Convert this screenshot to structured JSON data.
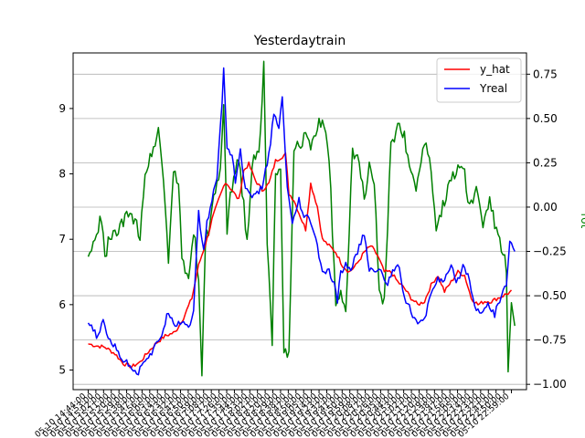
{
  "chart_data": {
    "type": "line",
    "title": "Yesterdaytrain",
    "legend_position": "top-right",
    "grid": "horizontal (right axis)",
    "left_axis": {
      "ylim": [
        4.7,
        9.85
      ],
      "ticks": [
        5,
        6,
        7,
        8,
        9
      ],
      "tick_labels": [
        "5",
        "6",
        "7",
        "8",
        "9"
      ]
    },
    "right_axis": {
      "label": "rot",
      "color": "#008000",
      "ylim": [
        -1.03,
        0.87
      ],
      "ticks": [
        -1.0,
        -0.75,
        -0.5,
        -0.25,
        0.0,
        0.25,
        0.5,
        0.75
      ],
      "tick_labels": [
        "−1.00",
        "−0.75",
        "−0.50",
        "−0.25",
        "0.00",
        "0.25",
        "0.50",
        "0.75"
      ]
    },
    "xlim": [
      -9,
      262
    ],
    "x_tick_labels": [
      "05-10 14:44:00",
      "05-10 14:53:00",
      "05-10 15:02:00",
      "05-10 15:11:00",
      "05-10 15:20:00",
      "05-10 15:29:00",
      "05-10 15:38:00",
      "05-10 15:47:00",
      "05-10 15:56:00",
      "05-10 16:05:00",
      "05-10 16:14:00",
      "05-10 16:23:00",
      "05-10 16:32:00",
      "05-10 16:41:00",
      "05-10 16:50:00",
      "05-10 16:59:00",
      "05-10 17:08:00",
      "05-10 17:17:00",
      "05-10 17:26:00",
      "05-10 17:35:00",
      "05-10 17:44:00",
      "05-10 17:53:00",
      "05-10 18:02:00",
      "05-10 18:11:00",
      "05-10 18:20:00",
      "05-10 18:29:00",
      "05-10 18:38:00",
      "05-10 18:47:00",
      "05-10 18:56:00",
      "05-10 19:05:00",
      "05-10 19:14:00",
      "05-10 19:23:00",
      "05-10 19:32:00",
      "05-10 19:41:00",
      "05-10 19:50:00",
      "05-10 19:59:00",
      "05-10 20:08:00",
      "05-10 20:17:00",
      "05-10 20:26:00",
      "05-10 20:35:00",
      "05-10 20:44:00",
      "05-10 20:53:00",
      "05-10 21:02:00",
      "05-10 21:11:00",
      "05-10 21:20:00",
      "05-10 21:29:00",
      "05-10 21:38:00",
      "05-10 21:47:00",
      "05-10 21:56:00",
      "05-10 22:05:00",
      "05-10 22:14:00",
      "05-10 22:23:00",
      "05-10 22:32:00",
      "05-10 22:41:00",
      "05-10 22:50:00",
      "05-10 22:59:00"
    ],
    "series": [
      {
        "name": "y_hat",
        "axis": "left",
        "color": "#ff0000",
        "anchors": [
          [
            0,
            5.4
          ],
          [
            5,
            5.37
          ],
          [
            10,
            5.35
          ],
          [
            16,
            5.25
          ],
          [
            21,
            5.1
          ],
          [
            26,
            5.05
          ],
          [
            31,
            5.12
          ],
          [
            36,
            5.28
          ],
          [
            41,
            5.42
          ],
          [
            46,
            5.52
          ],
          [
            52,
            5.58
          ],
          [
            57,
            5.8
          ],
          [
            62,
            6.1
          ],
          [
            66,
            6.6
          ],
          [
            71,
            7.0
          ],
          [
            74,
            7.3
          ],
          [
            78,
            7.6
          ],
          [
            82,
            7.88
          ],
          [
            86,
            7.75
          ],
          [
            90,
            7.6
          ],
          [
            93,
            8.05
          ],
          [
            96,
            8.15
          ],
          [
            100,
            7.9
          ],
          [
            104,
            7.75
          ],
          [
            108,
            7.85
          ],
          [
            112,
            8.2
          ],
          [
            118,
            8.3
          ],
          [
            120,
            7.7
          ],
          [
            123,
            7.6
          ],
          [
            126,
            7.4
          ],
          [
            130,
            7.15
          ],
          [
            133,
            7.85
          ],
          [
            137,
            7.5
          ],
          [
            140,
            7.0
          ],
          [
            144,
            6.9
          ],
          [
            148,
            6.8
          ],
          [
            152,
            6.6
          ],
          [
            156,
            6.5
          ],
          [
            160,
            6.6
          ],
          [
            165,
            6.8
          ],
          [
            169,
            6.9
          ],
          [
            173,
            6.75
          ],
          [
            177,
            6.5
          ],
          [
            181,
            6.5
          ],
          [
            185,
            6.35
          ],
          [
            189,
            6.25
          ],
          [
            193,
            6.1
          ],
          [
            197,
            6.0
          ],
          [
            201,
            6.05
          ],
          [
            205,
            6.3
          ],
          [
            209,
            6.45
          ],
          [
            213,
            6.2
          ],
          [
            217,
            6.35
          ],
          [
            221,
            6.5
          ],
          [
            225,
            6.45
          ],
          [
            229,
            6.1
          ],
          [
            233,
            6.0
          ],
          [
            237,
            6.05
          ],
          [
            241,
            6.05
          ],
          [
            245,
            6.1
          ],
          [
            249,
            6.15
          ],
          [
            253,
            6.2
          ]
        ],
        "noise": 0.03
      },
      {
        "name": "Yreal",
        "axis": "left",
        "color": "#0000ff",
        "anchors": [
          [
            0,
            5.72
          ],
          [
            3,
            5.6
          ],
          [
            6,
            5.5
          ],
          [
            9,
            5.75
          ],
          [
            12,
            5.5
          ],
          [
            16,
            5.35
          ],
          [
            21,
            5.15
          ],
          [
            26,
            5.05
          ],
          [
            30,
            4.95
          ],
          [
            33,
            5.15
          ],
          [
            38,
            5.25
          ],
          [
            44,
            5.55
          ],
          [
            48,
            5.9
          ],
          [
            52,
            5.7
          ],
          [
            57,
            5.75
          ],
          [
            60,
            5.65
          ],
          [
            63,
            5.9
          ],
          [
            66,
            7.4
          ],
          [
            69,
            6.8
          ],
          [
            71,
            7.25
          ],
          [
            74,
            7.6
          ],
          [
            77,
            7.95
          ],
          [
            80,
            9.1
          ],
          [
            81,
            9.6
          ],
          [
            83,
            8.4
          ],
          [
            86,
            8.3
          ],
          [
            88,
            7.9
          ],
          [
            91,
            8.35
          ],
          [
            94,
            7.75
          ],
          [
            97,
            7.7
          ],
          [
            100,
            7.65
          ],
          [
            104,
            7.8
          ],
          [
            108,
            8.3
          ],
          [
            111,
            8.9
          ],
          [
            114,
            8.7
          ],
          [
            116,
            9.15
          ],
          [
            119,
            7.8
          ],
          [
            122,
            7.2
          ],
          [
            126,
            7.6
          ],
          [
            129,
            7.3
          ],
          [
            132,
            7.35
          ],
          [
            136,
            7.0
          ],
          [
            140,
            6.5
          ],
          [
            144,
            6.5
          ],
          [
            147,
            6.3
          ],
          [
            149,
            6.05
          ],
          [
            151,
            6.5
          ],
          [
            154,
            6.6
          ],
          [
            157,
            6.55
          ],
          [
            161,
            6.8
          ],
          [
            165,
            7.1
          ],
          [
            168,
            6.5
          ],
          [
            171,
            6.55
          ],
          [
            175,
            6.5
          ],
          [
            179,
            6.3
          ],
          [
            182,
            6.55
          ],
          [
            186,
            6.6
          ],
          [
            189,
            6.1
          ],
          [
            193,
            5.9
          ],
          [
            197,
            5.7
          ],
          [
            201,
            5.75
          ],
          [
            205,
            6.2
          ],
          [
            209,
            6.4
          ],
          [
            213,
            6.35
          ],
          [
            217,
            6.6
          ],
          [
            220,
            6.3
          ],
          [
            224,
            6.6
          ],
          [
            228,
            6.4
          ],
          [
            231,
            5.95
          ],
          [
            235,
            5.9
          ],
          [
            239,
            6.0
          ],
          [
            243,
            5.85
          ],
          [
            247,
            6.15
          ],
          [
            250,
            6.3
          ],
          [
            252,
            6.95
          ],
          [
            255,
            6.85
          ]
        ],
        "noise": 0.05
      },
      {
        "name": "rot",
        "axis": "right",
        "color": "#008000",
        "anchors": [
          [
            0,
            -0.28
          ],
          [
            4,
            -0.2
          ],
          [
            8,
            -0.05
          ],
          [
            10,
            -0.3
          ],
          [
            12,
            -0.2
          ],
          [
            16,
            -0.15
          ],
          [
            20,
            -0.1
          ],
          [
            24,
            -0.05
          ],
          [
            28,
            -0.08
          ],
          [
            31,
            -0.15
          ],
          [
            34,
            0.2
          ],
          [
            38,
            0.3
          ],
          [
            42,
            0.45
          ],
          [
            45,
            0.15
          ],
          [
            48,
            -0.28
          ],
          [
            51,
            0.2
          ],
          [
            54,
            0.15
          ],
          [
            56,
            -0.3
          ],
          [
            60,
            -0.4
          ],
          [
            62,
            -0.2
          ],
          [
            64,
            -0.15
          ],
          [
            66,
            -0.45
          ],
          [
            68,
            -0.95
          ],
          [
            70,
            -0.2
          ],
          [
            73,
            -0.1
          ],
          [
            76,
            0.1
          ],
          [
            79,
            0.2
          ],
          [
            81,
            0.55
          ],
          [
            83,
            -0.15
          ],
          [
            85,
            0.05
          ],
          [
            88,
            0.2
          ],
          [
            90,
            0.3
          ],
          [
            92,
            0.1
          ],
          [
            95,
            -0.2
          ],
          [
            98,
            0.25
          ],
          [
            102,
            0.3
          ],
          [
            105,
            0.8
          ],
          [
            107,
            -0.2
          ],
          [
            110,
            -0.75
          ],
          [
            112,
            0.15
          ],
          [
            115,
            0.2
          ],
          [
            117,
            -0.85
          ],
          [
            120,
            -0.8
          ],
          [
            123,
            0.3
          ],
          [
            126,
            0.35
          ],
          [
            130,
            0.4
          ],
          [
            134,
            0.35
          ],
          [
            137,
            0.45
          ],
          [
            140,
            0.5
          ],
          [
            144,
            0.3
          ],
          [
            148,
            -0.55
          ],
          [
            151,
            -0.45
          ],
          [
            154,
            -0.6
          ],
          [
            158,
            0.3
          ],
          [
            162,
            0.25
          ],
          [
            165,
            0.05
          ],
          [
            168,
            0.25
          ],
          [
            171,
            0.15
          ],
          [
            174,
            -0.5
          ],
          [
            177,
            -0.55
          ],
          [
            181,
            0.35
          ],
          [
            185,
            0.45
          ],
          [
            189,
            0.4
          ],
          [
            193,
            0.2
          ],
          [
            196,
            0.1
          ],
          [
            200,
            0.35
          ],
          [
            204,
            0.3
          ],
          [
            208,
            -0.1
          ],
          [
            212,
            0.0
          ],
          [
            216,
            0.15
          ],
          [
            220,
            0.2
          ],
          [
            224,
            0.25
          ],
          [
            228,
            0.0
          ],
          [
            232,
            0.1
          ],
          [
            236,
            -0.1
          ],
          [
            240,
            0.05
          ],
          [
            244,
            -0.15
          ],
          [
            248,
            -0.25
          ],
          [
            250,
            -0.35
          ],
          [
            251,
            -0.95
          ],
          [
            253,
            -0.55
          ],
          [
            255,
            -0.7
          ]
        ],
        "noise": 0.04
      }
    ]
  }
}
